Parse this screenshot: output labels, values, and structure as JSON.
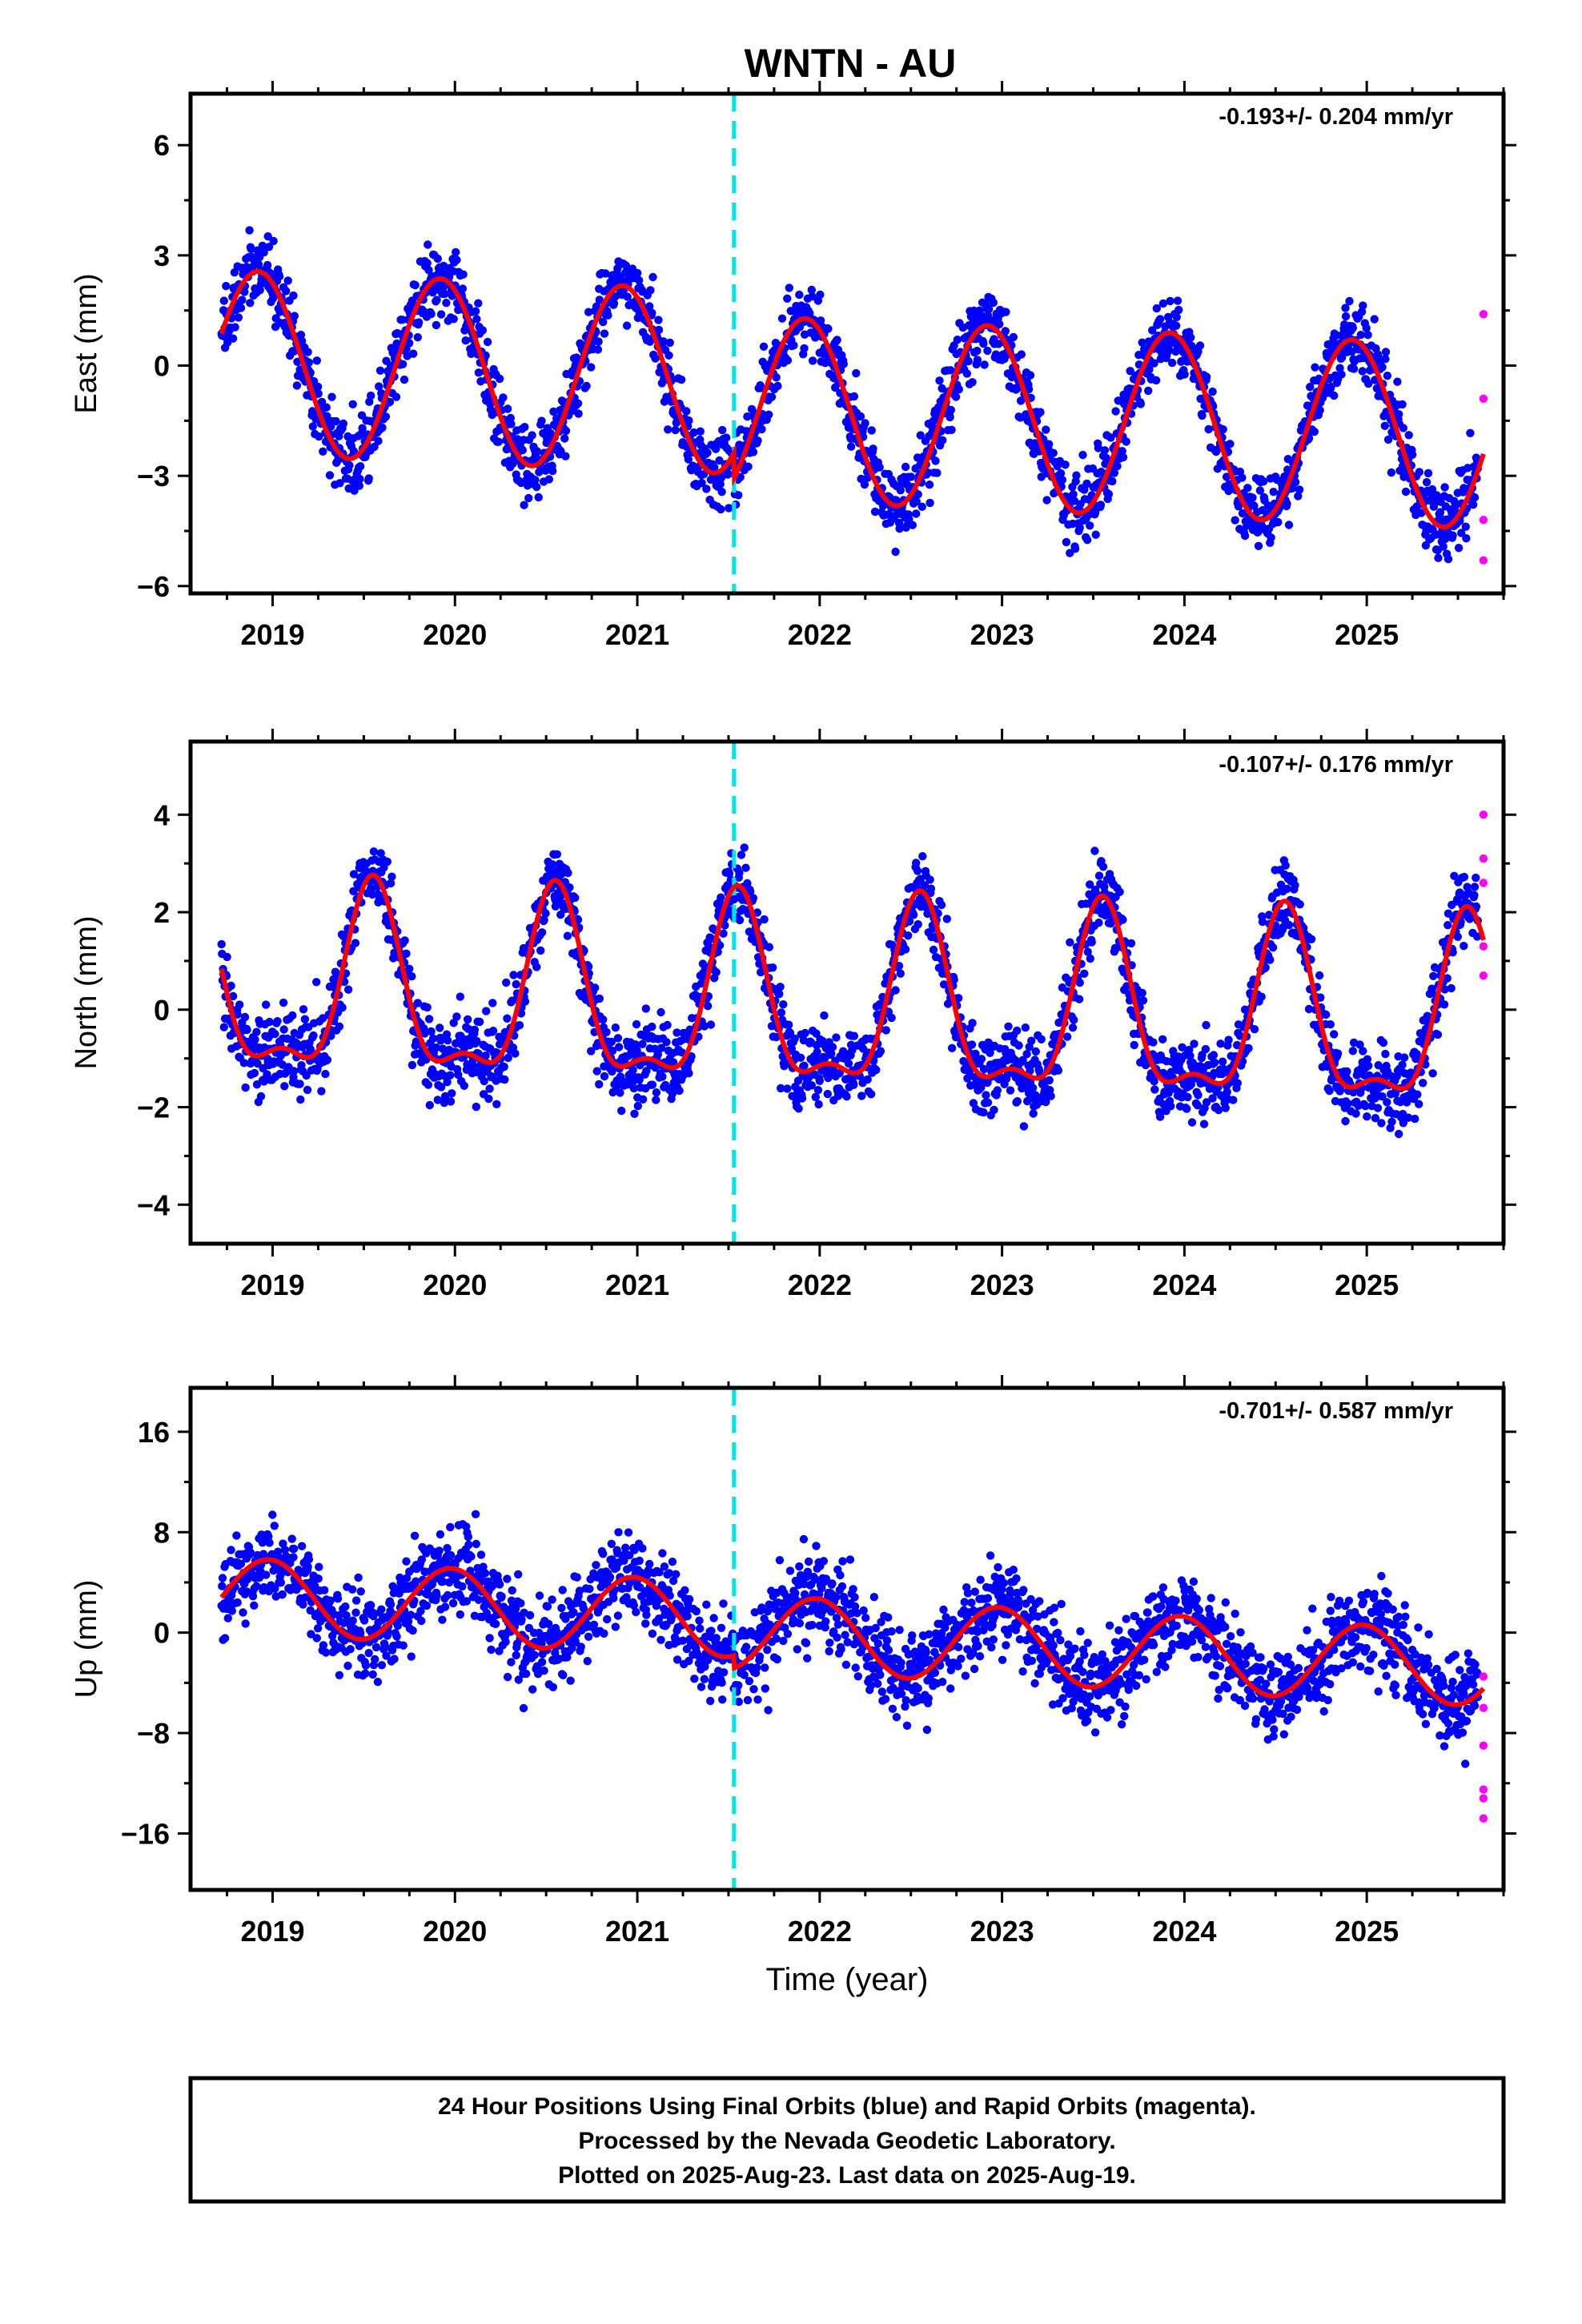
{
  "title": "WNTN - AU",
  "colors": {
    "final_orbits": "#0000ff",
    "rapid_orbits": "#ff00ff",
    "model_fit": "#ff0000",
    "event_line": "#00e5e5",
    "frame": "#000000"
  },
  "x_axis_label": "Time (year)",
  "caption": {
    "line1": "24 Hour Positions Using Final Orbits (blue) and Rapid Orbits (magenta).",
    "line2": "Processed by the Nevada Geodetic Laboratory.",
    "line3": "Plotted on 2025-Aug-23. Last data on 2025-Aug-19."
  },
  "chart_data": [
    {
      "type": "scatter",
      "ylabel": "East (mm)",
      "rate_text": "-0.193+/- 0.204 mm/yr",
      "trend_mm_per_yr": -0.193,
      "trend_sigma": 0.204,
      "xlim": [
        2018.55,
        2025.75
      ],
      "ylim": [
        -6.2,
        7.4
      ],
      "x_ticks": [
        2019,
        2020,
        2021,
        2022,
        2023,
        2024,
        2025
      ],
      "x_tick_labels": [
        "2019",
        "2020",
        "2021",
        "2022",
        "2023",
        "2024",
        "2025"
      ],
      "y_ticks": [
        -6,
        -3,
        0,
        3,
        6
      ],
      "y_tick_labels": [
        "−6",
        "−3",
        "0",
        "3",
        "6"
      ],
      "series_final": {
        "x_start": 2018.72,
        "x_end": 2025.61,
        "annual_amp": 2.5,
        "annual_peak": 2018.92,
        "semiannual_amp": 0.0,
        "semiannual_phase": 0.0,
        "offset": 0.1,
        "noise": 0.9
      },
      "series_rapid": {
        "x": [
          2025.64,
          2025.64,
          2025.64,
          2025.64
        ],
        "y": [
          1.4,
          -0.9,
          -4.2,
          -5.3
        ]
      },
      "step_at_event": -0.7,
      "event_year": 2021.53
    },
    {
      "type": "scatter",
      "ylabel": "North (mm)",
      "rate_text": "-0.107+/- 0.176 mm/yr",
      "trend_mm_per_yr": -0.107,
      "trend_sigma": 0.176,
      "xlim": [
        2018.55,
        2025.75
      ],
      "ylim": [
        -4.8,
        5.5
      ],
      "x_ticks": [
        2019,
        2020,
        2021,
        2022,
        2023,
        2024,
        2025
      ],
      "x_tick_labels": [
        "2019",
        "2020",
        "2021",
        "2022",
        "2023",
        "2024",
        "2025"
      ],
      "y_ticks": [
        -4,
        -2,
        0,
        2,
        4
      ],
      "y_tick_labels": [
        "−4",
        "−2",
        "0",
        "2",
        "4"
      ],
      "series_final": {
        "x_start": 2018.72,
        "x_end": 2025.61,
        "annual_amp": 1.8,
        "annual_peak": 2019.55,
        "semiannual_amp": 0.7,
        "semiannual_phase": 2019.55,
        "offset": 0.35,
        "noise": 0.75
      },
      "series_rapid": {
        "x": [
          2025.64,
          2025.64,
          2025.64,
          2025.64,
          2025.64
        ],
        "y": [
          4.0,
          3.1,
          2.6,
          1.3,
          0.7
        ]
      },
      "step_at_event": 0.0,
      "event_year": 2021.53
    },
    {
      "type": "scatter",
      "ylabel": "Up (mm)",
      "rate_text": "-0.701+/- 0.587 mm/yr",
      "trend_mm_per_yr": -0.701,
      "trend_sigma": 0.587,
      "xlim": [
        2018.55,
        2025.75
      ],
      "ylim": [
        -20.5,
        19.5
      ],
      "x_ticks": [
        2019,
        2020,
        2021,
        2022,
        2023,
        2024,
        2025
      ],
      "x_tick_labels": [
        "2019",
        "2020",
        "2021",
        "2022",
        "2023",
        "2024",
        "2025"
      ],
      "y_ticks": [
        -16,
        -8,
        0,
        8,
        16
      ],
      "y_tick_labels": [
        "−16",
        "−8",
        "0",
        "8",
        "16"
      ],
      "series_final": {
        "x_start": 2018.72,
        "x_end": 2025.61,
        "annual_amp": 3.0,
        "annual_peak": 2018.98,
        "semiannual_amp": 0.0,
        "semiannual_phase": 0.0,
        "offset": 3.0,
        "noise": 3.2
      },
      "series_rapid": {
        "x": [
          2025.64,
          2025.64,
          2025.64,
          2025.64,
          2025.64,
          2025.64
        ],
        "y": [
          -3.5,
          -6.0,
          -9.0,
          -12.5,
          -13.2,
          -14.8
        ]
      },
      "step_at_event": -1.0,
      "event_year": 2021.53
    }
  ]
}
